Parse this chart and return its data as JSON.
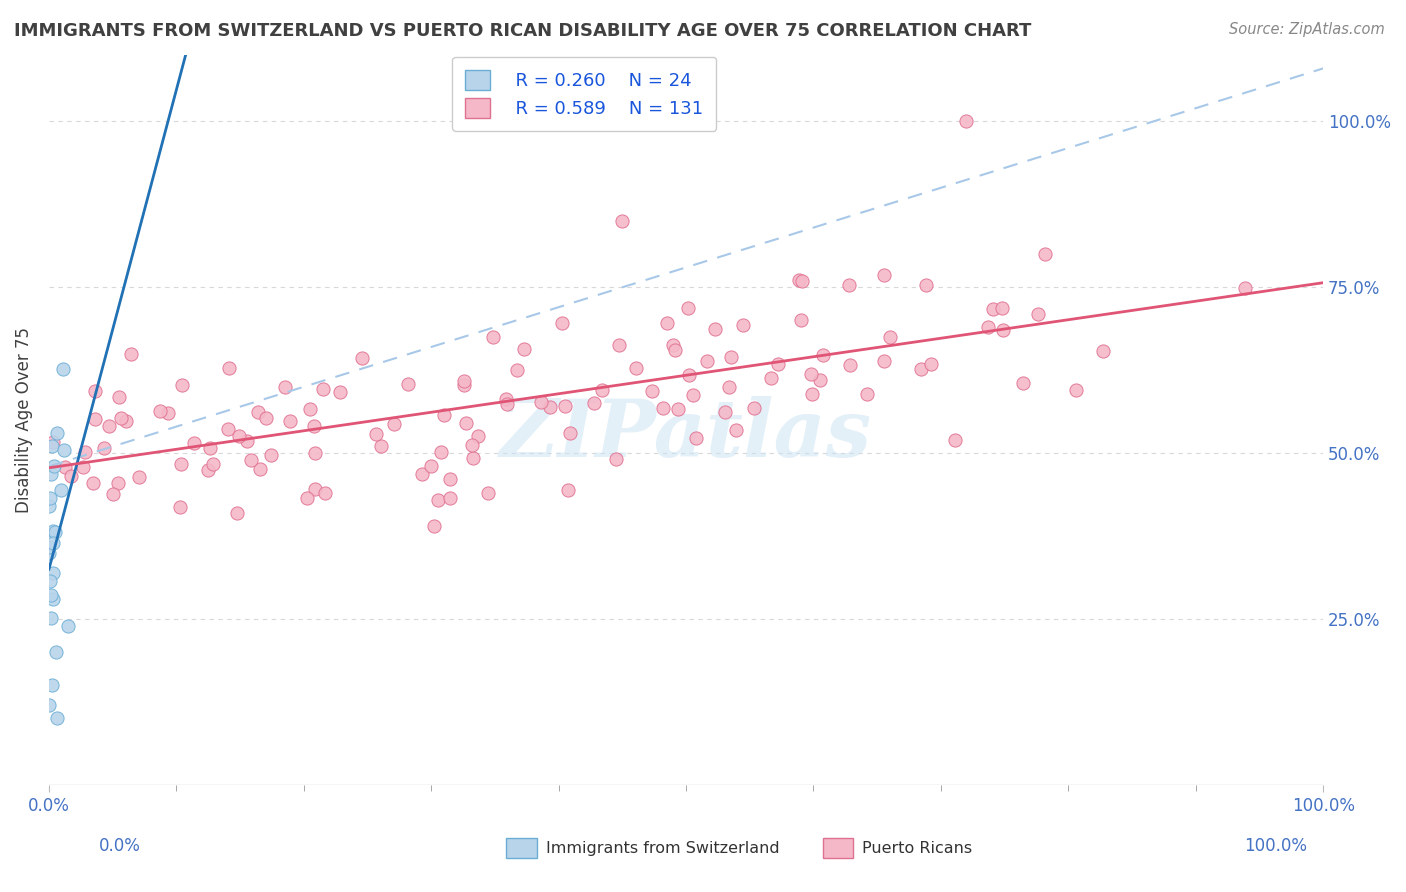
{
  "title": "IMMIGRANTS FROM SWITZERLAND VS PUERTO RICAN DISABILITY AGE OVER 75 CORRELATION CHART",
  "source": "Source: ZipAtlas.com",
  "ylabel": "Disability Age Over 75",
  "xlim": [
    0,
    1.0
  ],
  "ylim": [
    0,
    1.1
  ],
  "legend_R1": "R = 0.260",
  "legend_N1": "N = 24",
  "legend_R2": "R = 0.589",
  "legend_N2": "N = 131",
  "swiss_fill_color": "#b8d4ea",
  "swiss_edge_color": "#6aaed6",
  "swiss_line_color": "#2171b5",
  "pr_fill_color": "#f4b8c8",
  "pr_edge_color": "#e07090",
  "pr_line_color": "#e05575",
  "dashed_line_color": "#a8c8e8",
  "background_color": "#ffffff",
  "grid_color": "#d8d8d8",
  "watermark": "ZIPatlas",
  "title_color": "#404040",
  "axis_tick_color": "#4472c4",
  "right_tick_color": "#4472c4",
  "swiss_trend_intercept": 0.38,
  "swiss_trend_slope": 3.5,
  "pr_trend_intercept": 0.5,
  "pr_trend_slope": 0.22,
  "dashed_intercept": 0.48,
  "dashed_slope": 0.6
}
